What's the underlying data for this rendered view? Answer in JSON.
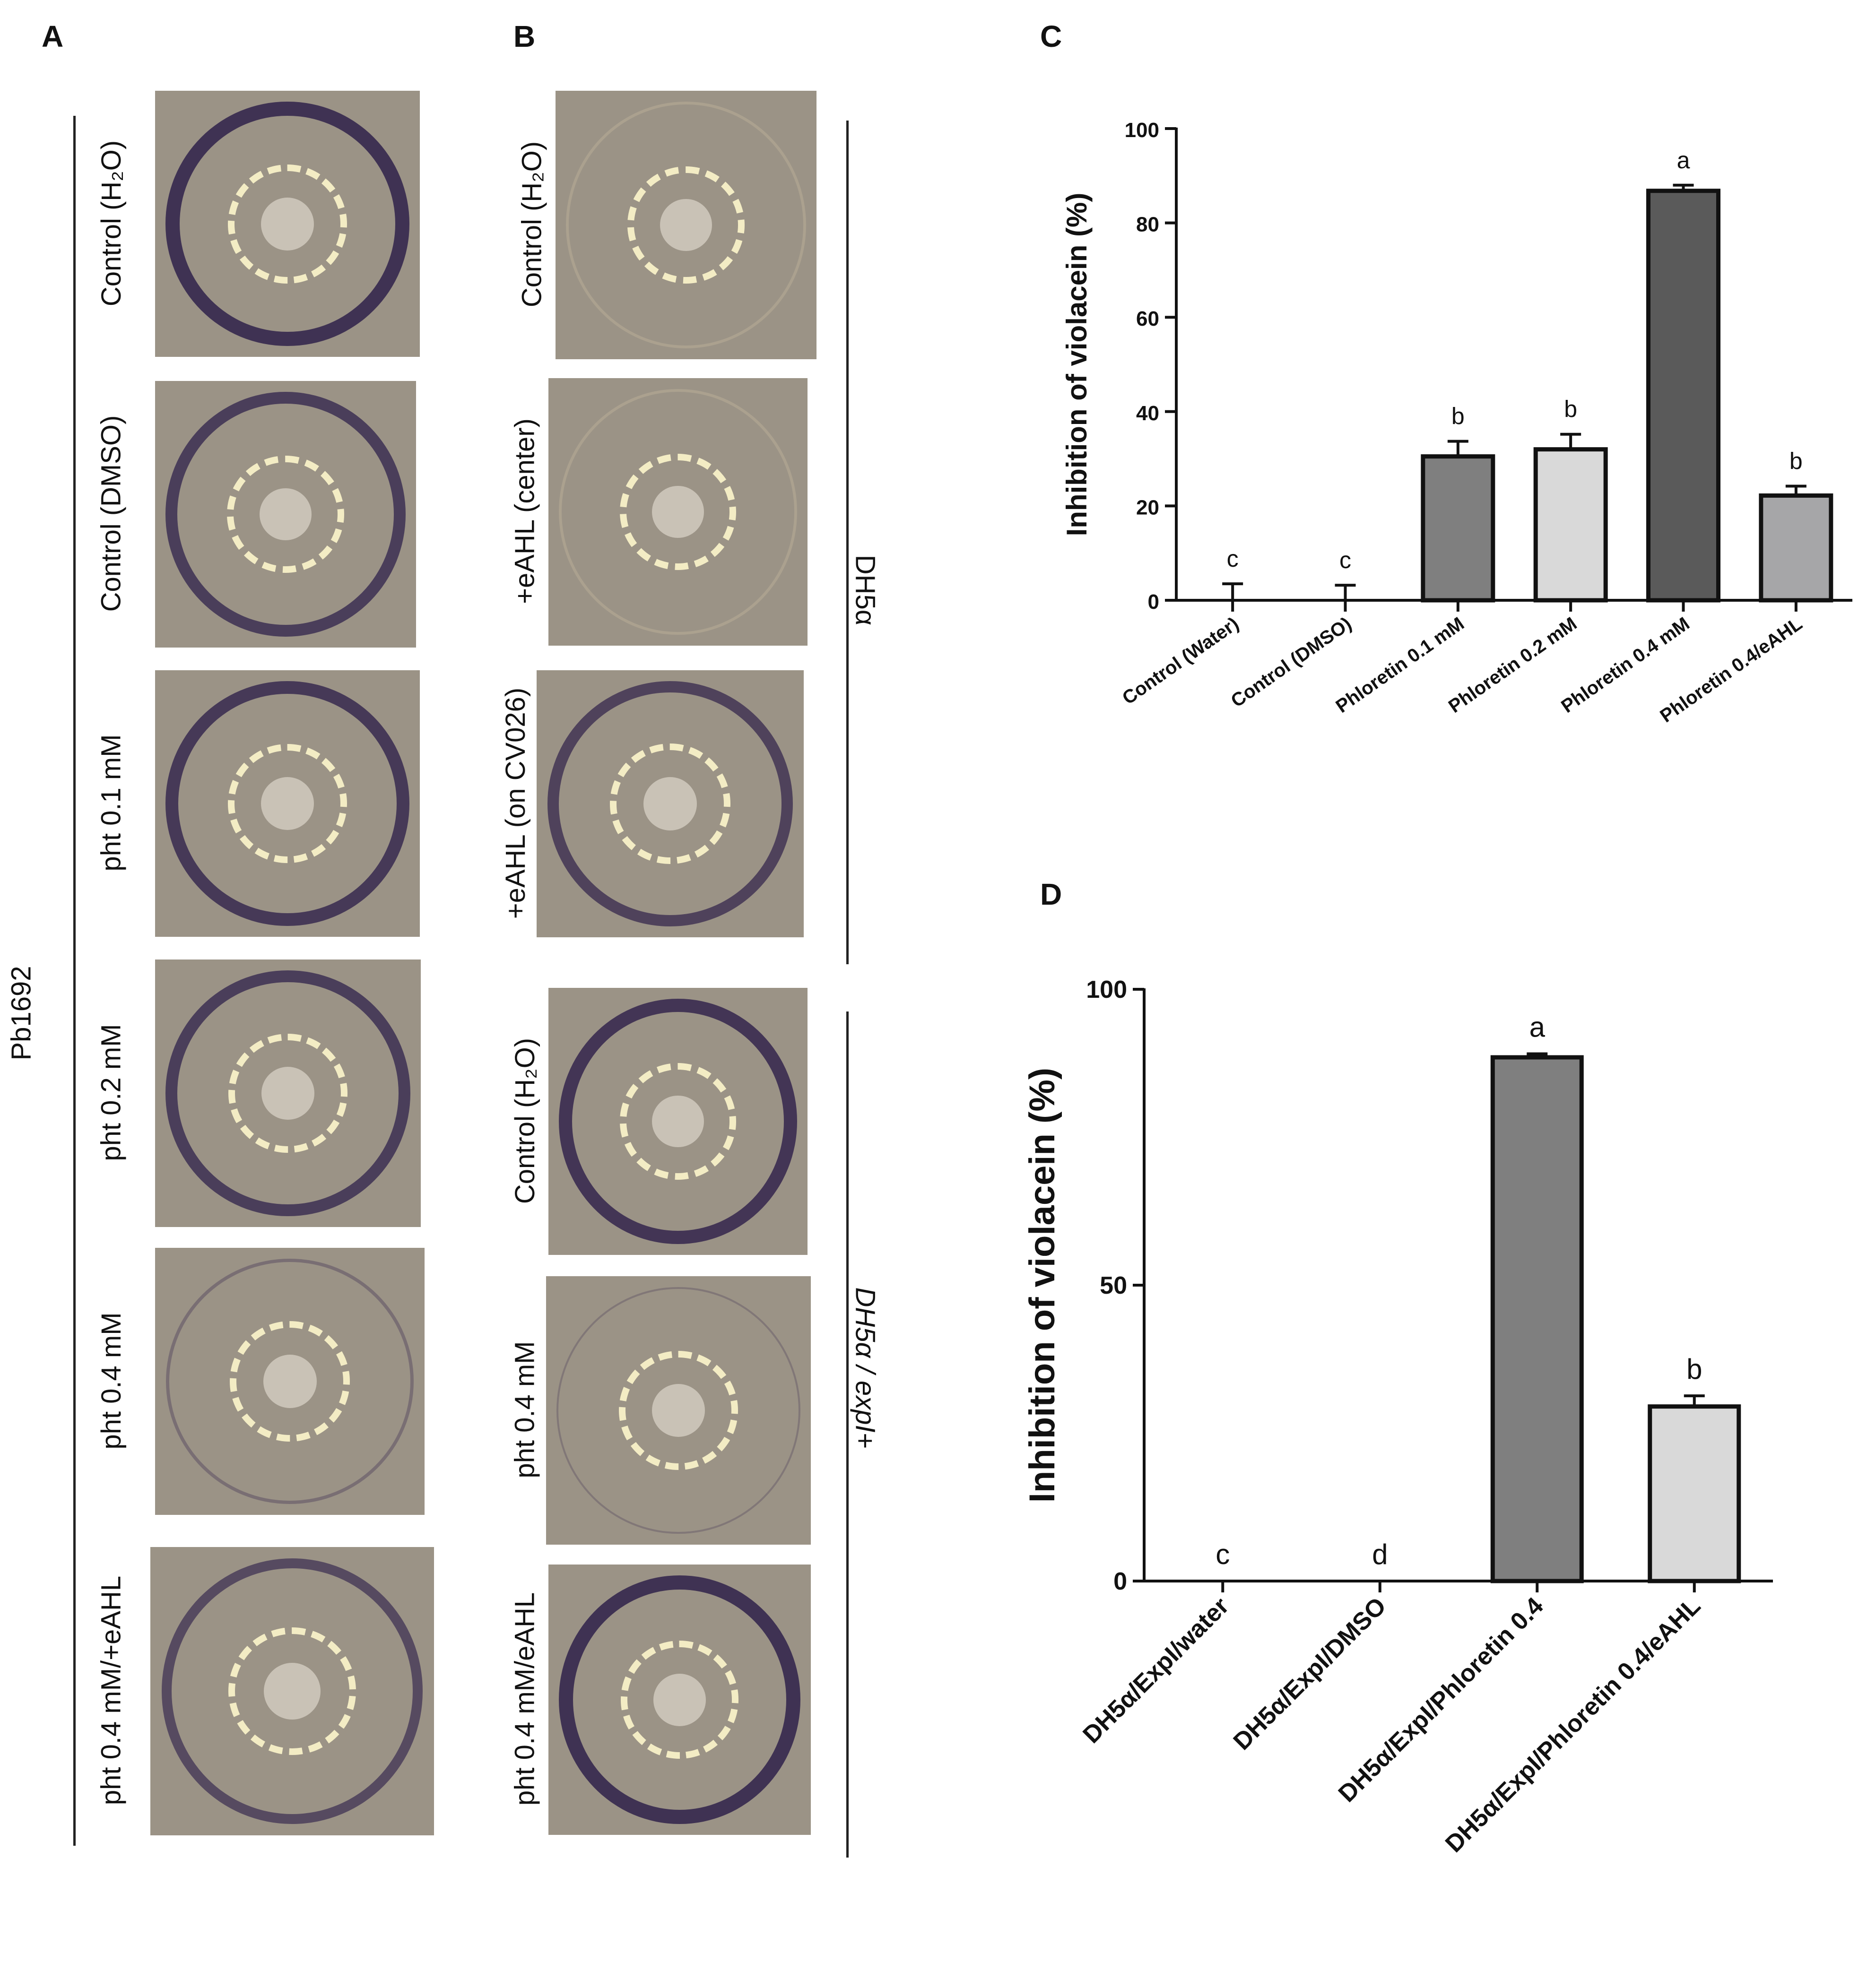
{
  "panels": {
    "A": {
      "letter": "A",
      "group_label": "Pb1692",
      "plates": [
        {
          "label": "Control (H₂O)",
          "ring_intensity": 1.0
        },
        {
          "label": "Control (DMSO)",
          "ring_intensity": 0.85
        },
        {
          "label": "pht 0.1 mM",
          "ring_intensity": 0.9
        },
        {
          "label": "pht  0.2 mM",
          "ring_intensity": 0.85
        },
        {
          "label": "pht 0.4 mM",
          "ring_intensity": 0.25
        },
        {
          "label": "pht 0.4 mM/+eAHL",
          "ring_intensity": 0.7
        }
      ]
    },
    "B": {
      "letter": "B",
      "groups": [
        {
          "label": "DH5α"
        },
        {
          "label": "DH5α / expI+"
        }
      ],
      "plates": [
        {
          "label": "Control (H₂O)",
          "ring_intensity": 0.0
        },
        {
          "label": "+eAHL (center)",
          "ring_intensity": 0.0
        },
        {
          "label": "+eAHL (on CV026)",
          "ring_intensity": 0.8
        },
        {
          "label": "Control (H₂O)",
          "ring_intensity": 0.95
        },
        {
          "label": "pht 0.4 mM",
          "ring_intensity": 0.15
        },
        {
          "label": "pht 0.4 mM/eAHL",
          "ring_intensity": 1.0
        }
      ]
    },
    "C": {
      "letter": "C"
    },
    "D": {
      "letter": "D"
    }
  },
  "chart_data": [
    {
      "panel": "C",
      "type": "bar",
      "ylabel": "Inhibition of violacein (%)",
      "ylim": [
        0,
        100
      ],
      "yticks": [
        0,
        20,
        40,
        60,
        80,
        100
      ],
      "categories": [
        "Control (Water)",
        "Control (DMSO)",
        "Phloretin 0.1 mM",
        "Phloretin 0.2 mM",
        "Phloretin 0.4 mM",
        "Phloretin 0.4/eAHL"
      ],
      "values": [
        0,
        0.5,
        30.5,
        32,
        86.8,
        22.2
      ],
      "errors": [
        3.5,
        2.7,
        3.2,
        3.2,
        1.2,
        2.0
      ],
      "letters": [
        "c",
        "c",
        "b",
        "b",
        "a",
        "b"
      ],
      "colors": [
        "#8a8a8a",
        "#8a8a8a",
        "#7f7f7f",
        "#d9d9d9",
        "#5a5a5a",
        "#a6a6a8"
      ]
    },
    {
      "panel": "D",
      "type": "bar",
      "ylabel": "Inhibition of violacein (%)",
      "ylim": [
        0,
        100
      ],
      "yticks": [
        0,
        50,
        100
      ],
      "categories": [
        "DH5α/ExpI/water",
        "DH5α/ExpI/DMSO",
        "DH5α/ExpI/Phloretin 0.4",
        "DH5α/ExpI/Phloretin 0.4/eAHL"
      ],
      "values": [
        0,
        0,
        88.5,
        29.5
      ],
      "errors": [
        0,
        0,
        0.6,
        1.8
      ],
      "letters": [
        "c",
        "d",
        "a",
        "b"
      ],
      "colors": [
        "#8a8a8a",
        "#8a8a8a",
        "#7f7f7f",
        "#d9d9d9"
      ]
    }
  ]
}
